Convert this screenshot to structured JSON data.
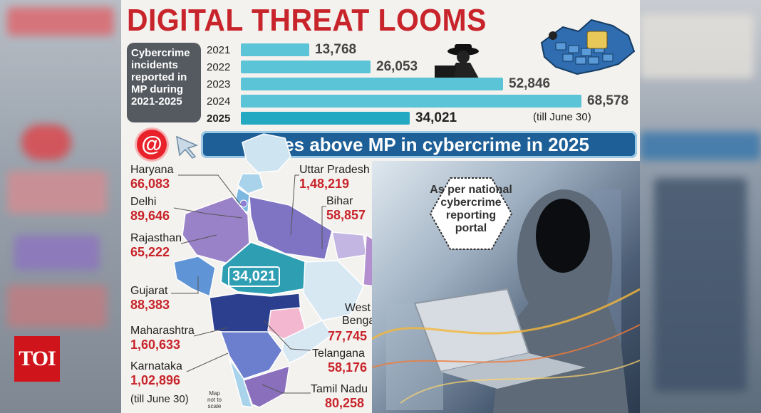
{
  "title": "DIGITAL THREAT LOOMS",
  "caption": "Cybercrime incidents reported in MP during 2021-2025",
  "chart_data": {
    "type": "bar",
    "categories": [
      "2021",
      "2022",
      "2023",
      "2024",
      "2025"
    ],
    "values": [
      13768,
      26053,
      52846,
      68578,
      34021
    ],
    "value_labels": [
      "13,768",
      "26,053",
      "52,846",
      "68,578",
      "34,021"
    ],
    "note_2025": "(till June 30)"
  },
  "banner": "States above MP in cybercrime in 2025",
  "states": [
    {
      "name": "Haryana",
      "value": "66,083"
    },
    {
      "name": "Delhi",
      "value": "89,646"
    },
    {
      "name": "Rajasthan",
      "value": "65,222"
    },
    {
      "name": "Gujarat",
      "value": "88,383"
    },
    {
      "name": "Maharashtra",
      "value": "1,60,633"
    },
    {
      "name": "Karnataka",
      "value": "1,02,896"
    },
    {
      "name": "Uttar Pradesh",
      "value": "1,48,219"
    },
    {
      "name": "Bihar",
      "value": "58,857"
    },
    {
      "name": "West Bengal",
      "value": "77,745"
    },
    {
      "name": "Telangana",
      "value": "58,176"
    },
    {
      "name": "Tamil Nadu",
      "value": "80,258"
    }
  ],
  "mp_value": "34,021",
  "footnote": "(till June 30)",
  "map_note": "Map not to scale",
  "portal_note": "As per national cybercrime reporting portal",
  "brand": "TOI",
  "colors": {
    "accent_red": "#c8242b",
    "bar": "#5bc4d6",
    "banner": "#1d5f96"
  }
}
